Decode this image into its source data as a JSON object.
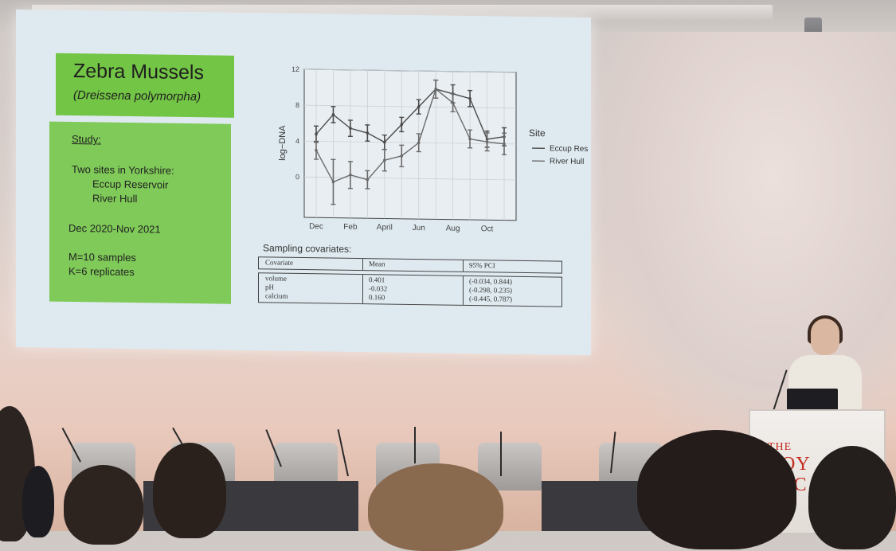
{
  "slide": {
    "title": "Zebra Mussels",
    "subtitle": "(Dreissena polymorpha)",
    "study_heading": "Study:",
    "sites_intro": "Two sites in Yorkshire:",
    "site_1": "Eccup Reservoir",
    "site_2": "River Hull",
    "period": "Dec 2020-Nov 2021",
    "samples": "M=10 samples",
    "replicates": "K=6 replicates"
  },
  "chart_data": {
    "type": "line",
    "ylabel": "log−DNA",
    "yticks": [
      0,
      4,
      8,
      12
    ],
    "ylim": [
      -4.5,
      12
    ],
    "xticks": [
      "Dec",
      "Feb",
      "April",
      "Jun",
      "Aug",
      "Oct"
    ],
    "x": [
      "Dec",
      "Jan",
      "Feb",
      "Mar",
      "April",
      "May",
      "Jun",
      "Jul",
      "Aug",
      "Sep",
      "Oct",
      "Nov"
    ],
    "legend_title": "Site",
    "legend_position": "right",
    "series": [
      {
        "name": "Eccup Res",
        "values": [
          4.8,
          7.0,
          5.5,
          5.0,
          4.0,
          6.0,
          8.0,
          10.0,
          9.5,
          9.0,
          4.5,
          4.8
        ],
        "err": [
          0.9,
          0.9,
          0.9,
          0.9,
          0.8,
          0.8,
          0.8,
          1.0,
          1.0,
          0.9,
          0.9,
          1.0
        ]
      },
      {
        "name": "River Hull",
        "values": [
          3.0,
          -0.5,
          0.3,
          -0.2,
          2.0,
          2.5,
          4.0,
          10.0,
          8.5,
          4.5,
          4.2,
          4.0
        ],
        "err": [
          1.0,
          2.5,
          1.5,
          1.0,
          1.2,
          1.2,
          1.0,
          1.0,
          1.0,
          1.0,
          1.0,
          1.2
        ]
      }
    ]
  },
  "covariates": {
    "title": "Sampling covariates:",
    "headers": [
      "Covariate",
      "Mean",
      "95% PCI"
    ],
    "rows": [
      [
        "volume",
        "0.401",
        "(-0.034, 0.844)"
      ],
      [
        "pH",
        "-0.032",
        "(-0.298, 0.235)"
      ],
      [
        "calcium",
        "0.160",
        "(-0.445, 0.787)"
      ]
    ]
  },
  "podium": {
    "line1": "THE",
    "line2": "ROY",
    "line3": "SOC"
  },
  "colors": {
    "slide_bg": "#dfeaf0",
    "title_box": "#73c545",
    "study_box": "#7fca58",
    "line": "#555555",
    "podium_text": "#c42c1f"
  }
}
